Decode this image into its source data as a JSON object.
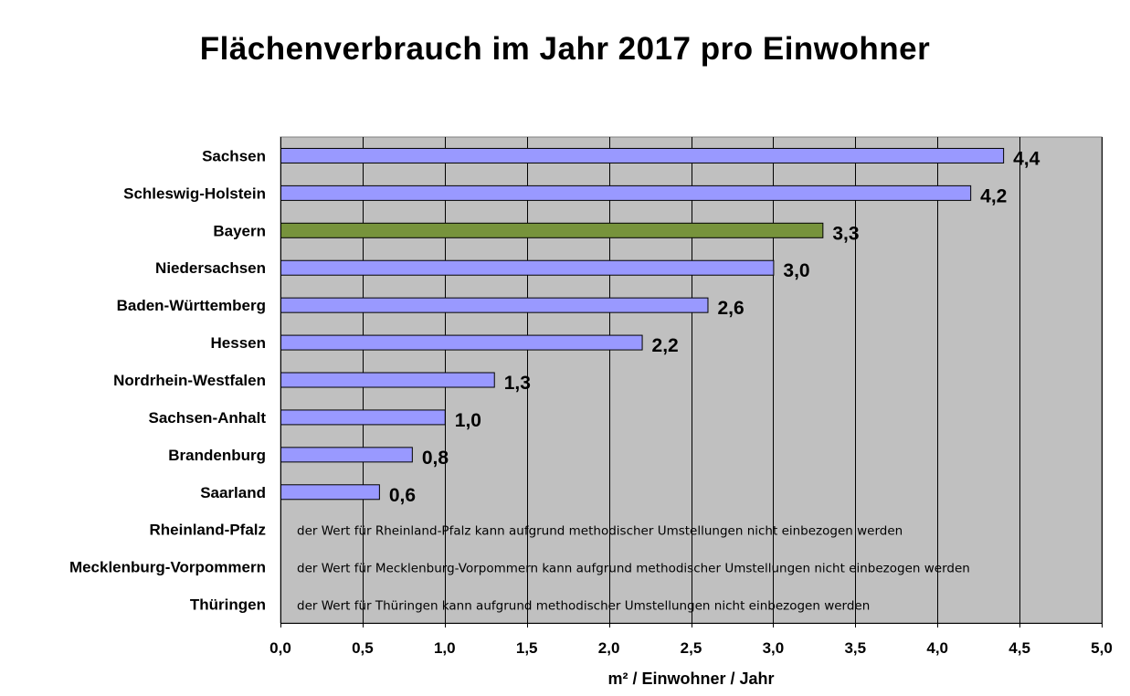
{
  "chart_data": {
    "type": "bar",
    "orientation": "horizontal",
    "title": "Flächenverbrauch im Jahr 2017 pro Einwohner",
    "xlabel": "m² / Einwohner / Jahr",
    "ylabel": "",
    "xlim": [
      0,
      5
    ],
    "x_ticks": [
      "0,0",
      "0,5",
      "1,0",
      "1,5",
      "2,0",
      "2,5",
      "3,0",
      "3,5",
      "4,0",
      "4,5",
      "5,0"
    ],
    "grid": "vertical",
    "plot_background": "#c0c0c0",
    "colors": {
      "default": "#9999ff",
      "highlight": "#77933c",
      "border": "#000000"
    },
    "categories": [
      "Sachsen",
      "Schleswig-Holstein",
      "Bayern",
      "Niedersachsen",
      "Baden-Württemberg",
      "Hessen",
      "Nordrhein-Westfalen",
      "Sachsen-Anhalt",
      "Brandenburg",
      "Saarland",
      "Rheinland-Pfalz",
      "Mecklenburg-Vorpommern",
      "Thüringen"
    ],
    "values": [
      4.4,
      4.2,
      3.3,
      3.0,
      2.6,
      2.2,
      1.3,
      1.0,
      0.8,
      0.6,
      null,
      null,
      null
    ],
    "value_labels": [
      "4,4",
      "4,2",
      "3,3",
      "3,0",
      "2,6",
      "2,2",
      "1,3",
      "1,0",
      "0,8",
      "0,6",
      "",
      "",
      ""
    ],
    "highlight_index": 2,
    "notes": [
      {
        "category": "Rheinland-Pfalz",
        "text": "der Wert für Rheinland-Pfalz kann aufgrund methodischer Umstellungen nicht einbezogen werden"
      },
      {
        "category": "Mecklenburg-Vorpommern",
        "text": "der Wert für Mecklenburg-Vorpommern kann aufgrund methodischer Umstellungen nicht einbezogen werden"
      },
      {
        "category": "Thüringen",
        "text": "der Wert für Thüringen kann aufgrund methodischer Umstellungen nicht einbezogen werden"
      }
    ]
  }
}
